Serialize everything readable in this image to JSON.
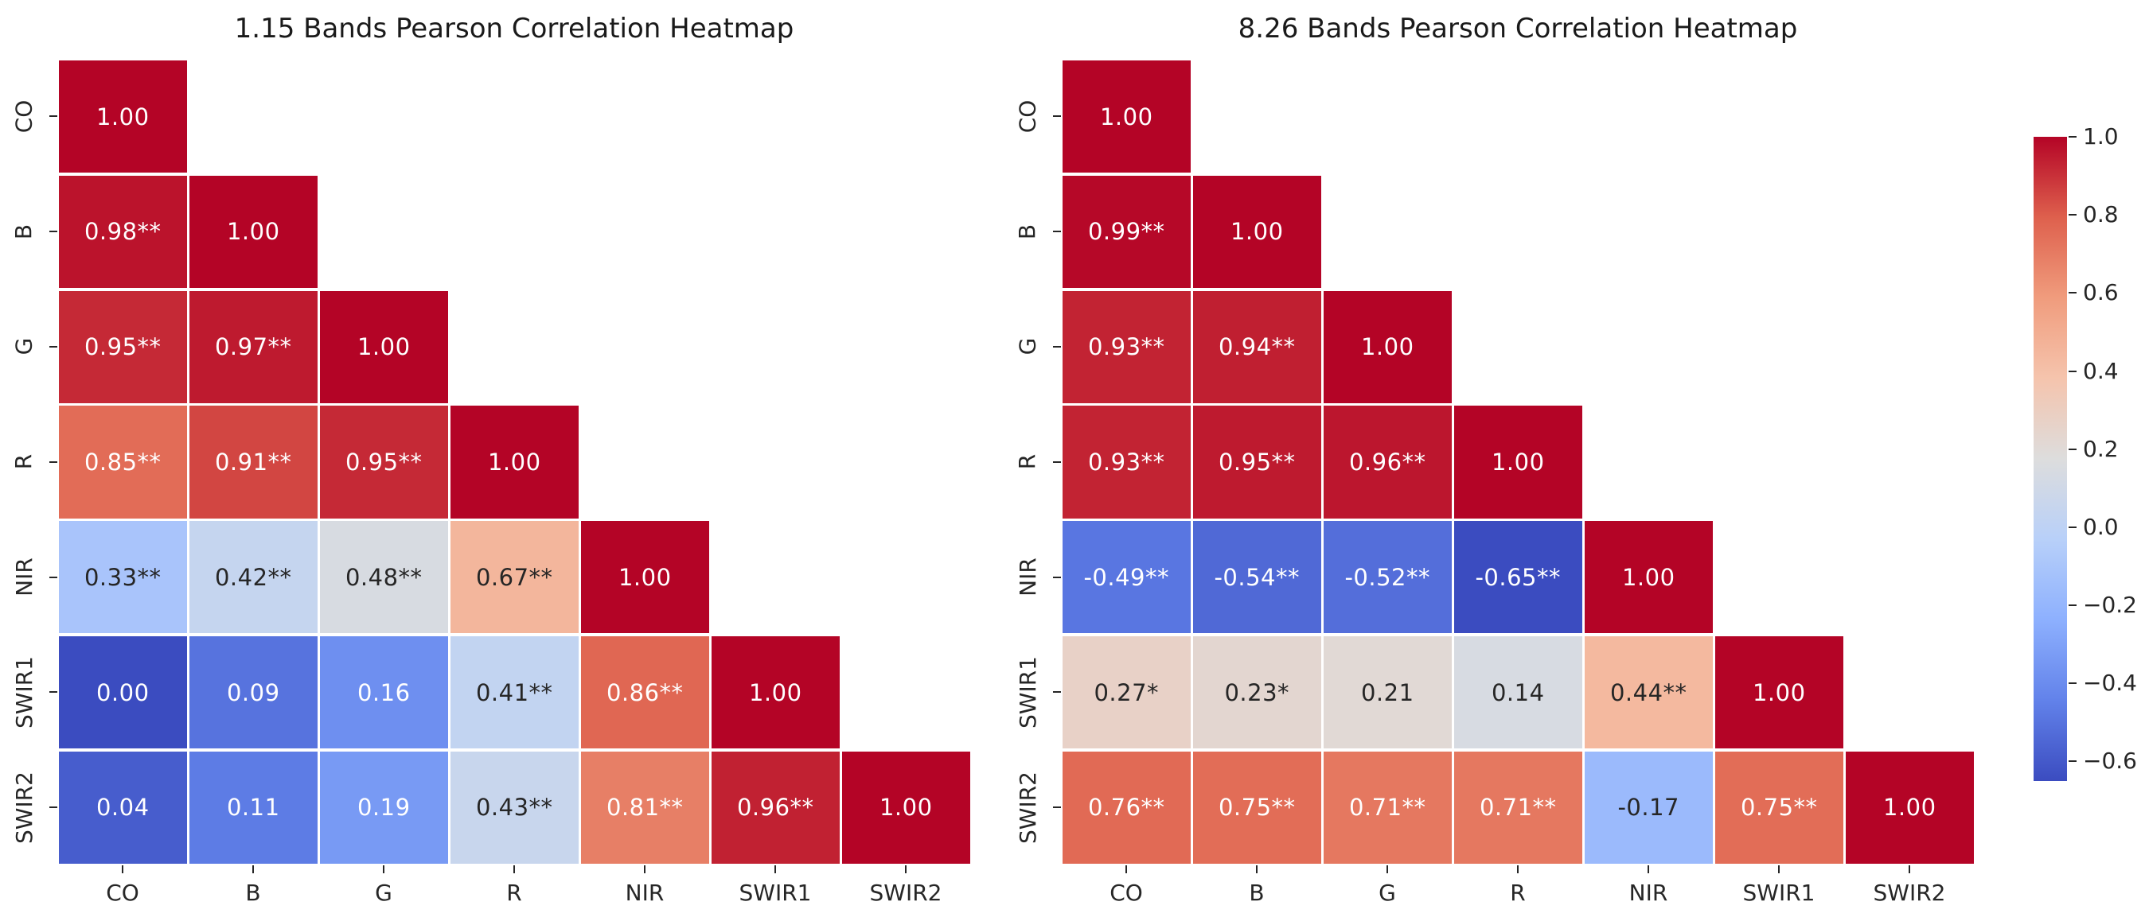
{
  "figure": {
    "background": "#ffffff",
    "text_color": "#1a1a1a"
  },
  "bands": [
    "CO",
    "B",
    "G",
    "R",
    "NIR",
    "SWIR1",
    "SWIR2"
  ],
  "chart_data": [
    {
      "type": "heatmap",
      "title": "1.15 Bands Pearson Correlation Heatmap",
      "x_tick_labels": [
        "CO",
        "B",
        "G",
        "R",
        "NIR",
        "SWIR1",
        "SWIR2"
      ],
      "y_tick_labels": [
        "CO",
        "B",
        "G",
        "R",
        "NIR",
        "SWIR1",
        "SWIR2"
      ],
      "colormap": "coolwarm",
      "mask": "upper-triangle-above-diagonal",
      "vmin": 0.0,
      "vmax": 1.0,
      "values": [
        [
          1.0
        ],
        [
          0.98,
          1.0
        ],
        [
          0.95,
          0.97,
          1.0
        ],
        [
          0.85,
          0.91,
          0.95,
          1.0
        ],
        [
          0.33,
          0.42,
          0.48,
          0.67,
          1.0
        ],
        [
          0.0,
          0.09,
          0.16,
          0.41,
          0.86,
          1.0
        ],
        [
          0.04,
          0.11,
          0.19,
          0.43,
          0.81,
          0.96,
          1.0
        ]
      ],
      "labels": [
        [
          "1.00"
        ],
        [
          "0.98**",
          "1.00"
        ],
        [
          "0.95**",
          "0.97**",
          "1.00"
        ],
        [
          "0.85**",
          "0.91**",
          "0.95**",
          "1.00"
        ],
        [
          "0.33**",
          "0.42**",
          "0.48**",
          "0.67**",
          "1.00"
        ],
        [
          "0.00",
          "0.09",
          "0.16",
          "0.41**",
          "0.86**",
          "1.00"
        ],
        [
          "0.04",
          "0.11",
          "0.19",
          "0.43**",
          "0.81**",
          "0.96**",
          "1.00"
        ]
      ]
    },
    {
      "type": "heatmap",
      "title": "8.26 Bands Pearson Correlation Heatmap",
      "x_tick_labels": [
        "CO",
        "B",
        "G",
        "R",
        "NIR",
        "SWIR1",
        "SWIR2"
      ],
      "y_tick_labels": [
        "CO",
        "B",
        "G",
        "R",
        "NIR",
        "SWIR1",
        "SWIR2"
      ],
      "colormap": "coolwarm",
      "mask": "upper-triangle-above-diagonal",
      "vmin": -0.65,
      "vmax": 1.0,
      "values": [
        [
          1.0
        ],
        [
          0.99,
          1.0
        ],
        [
          0.93,
          0.94,
          1.0
        ],
        [
          0.93,
          0.95,
          0.96,
          1.0
        ],
        [
          -0.49,
          -0.54,
          -0.52,
          -0.65,
          1.0
        ],
        [
          0.27,
          0.23,
          0.21,
          0.14,
          0.44,
          1.0
        ],
        [
          0.76,
          0.75,
          0.71,
          0.71,
          -0.17,
          0.75,
          1.0
        ]
      ],
      "labels": [
        [
          "1.00"
        ],
        [
          "0.99**",
          "1.00"
        ],
        [
          "0.93**",
          "0.94**",
          "1.00"
        ],
        [
          "0.93**",
          "0.95**",
          "0.96**",
          "1.00"
        ],
        [
          "-0.49**",
          "-0.54**",
          "-0.52**",
          "-0.65**",
          "1.00"
        ],
        [
          "0.27*",
          "0.23*",
          "0.21",
          "0.14",
          "0.44**",
          "1.00"
        ],
        [
          "0.76**",
          "0.75**",
          "0.71**",
          "0.71**",
          "-0.17",
          "0.75**",
          "1.00"
        ]
      ]
    }
  ],
  "colorbar": {
    "colormap": "coolwarm",
    "vmin": -0.65,
    "vmax": 1.0,
    "ticks": [
      {
        "value": 1.0,
        "label": "1.0"
      },
      {
        "value": 0.8,
        "label": "0.8"
      },
      {
        "value": 0.6,
        "label": "0.6"
      },
      {
        "value": 0.4,
        "label": "0.4"
      },
      {
        "value": 0.2,
        "label": "0.2"
      },
      {
        "value": 0.0,
        "label": "0.0"
      },
      {
        "value": -0.2,
        "label": "−0.2"
      },
      {
        "value": -0.4,
        "label": "−0.4"
      },
      {
        "value": -0.6,
        "label": "−0.6"
      }
    ]
  }
}
